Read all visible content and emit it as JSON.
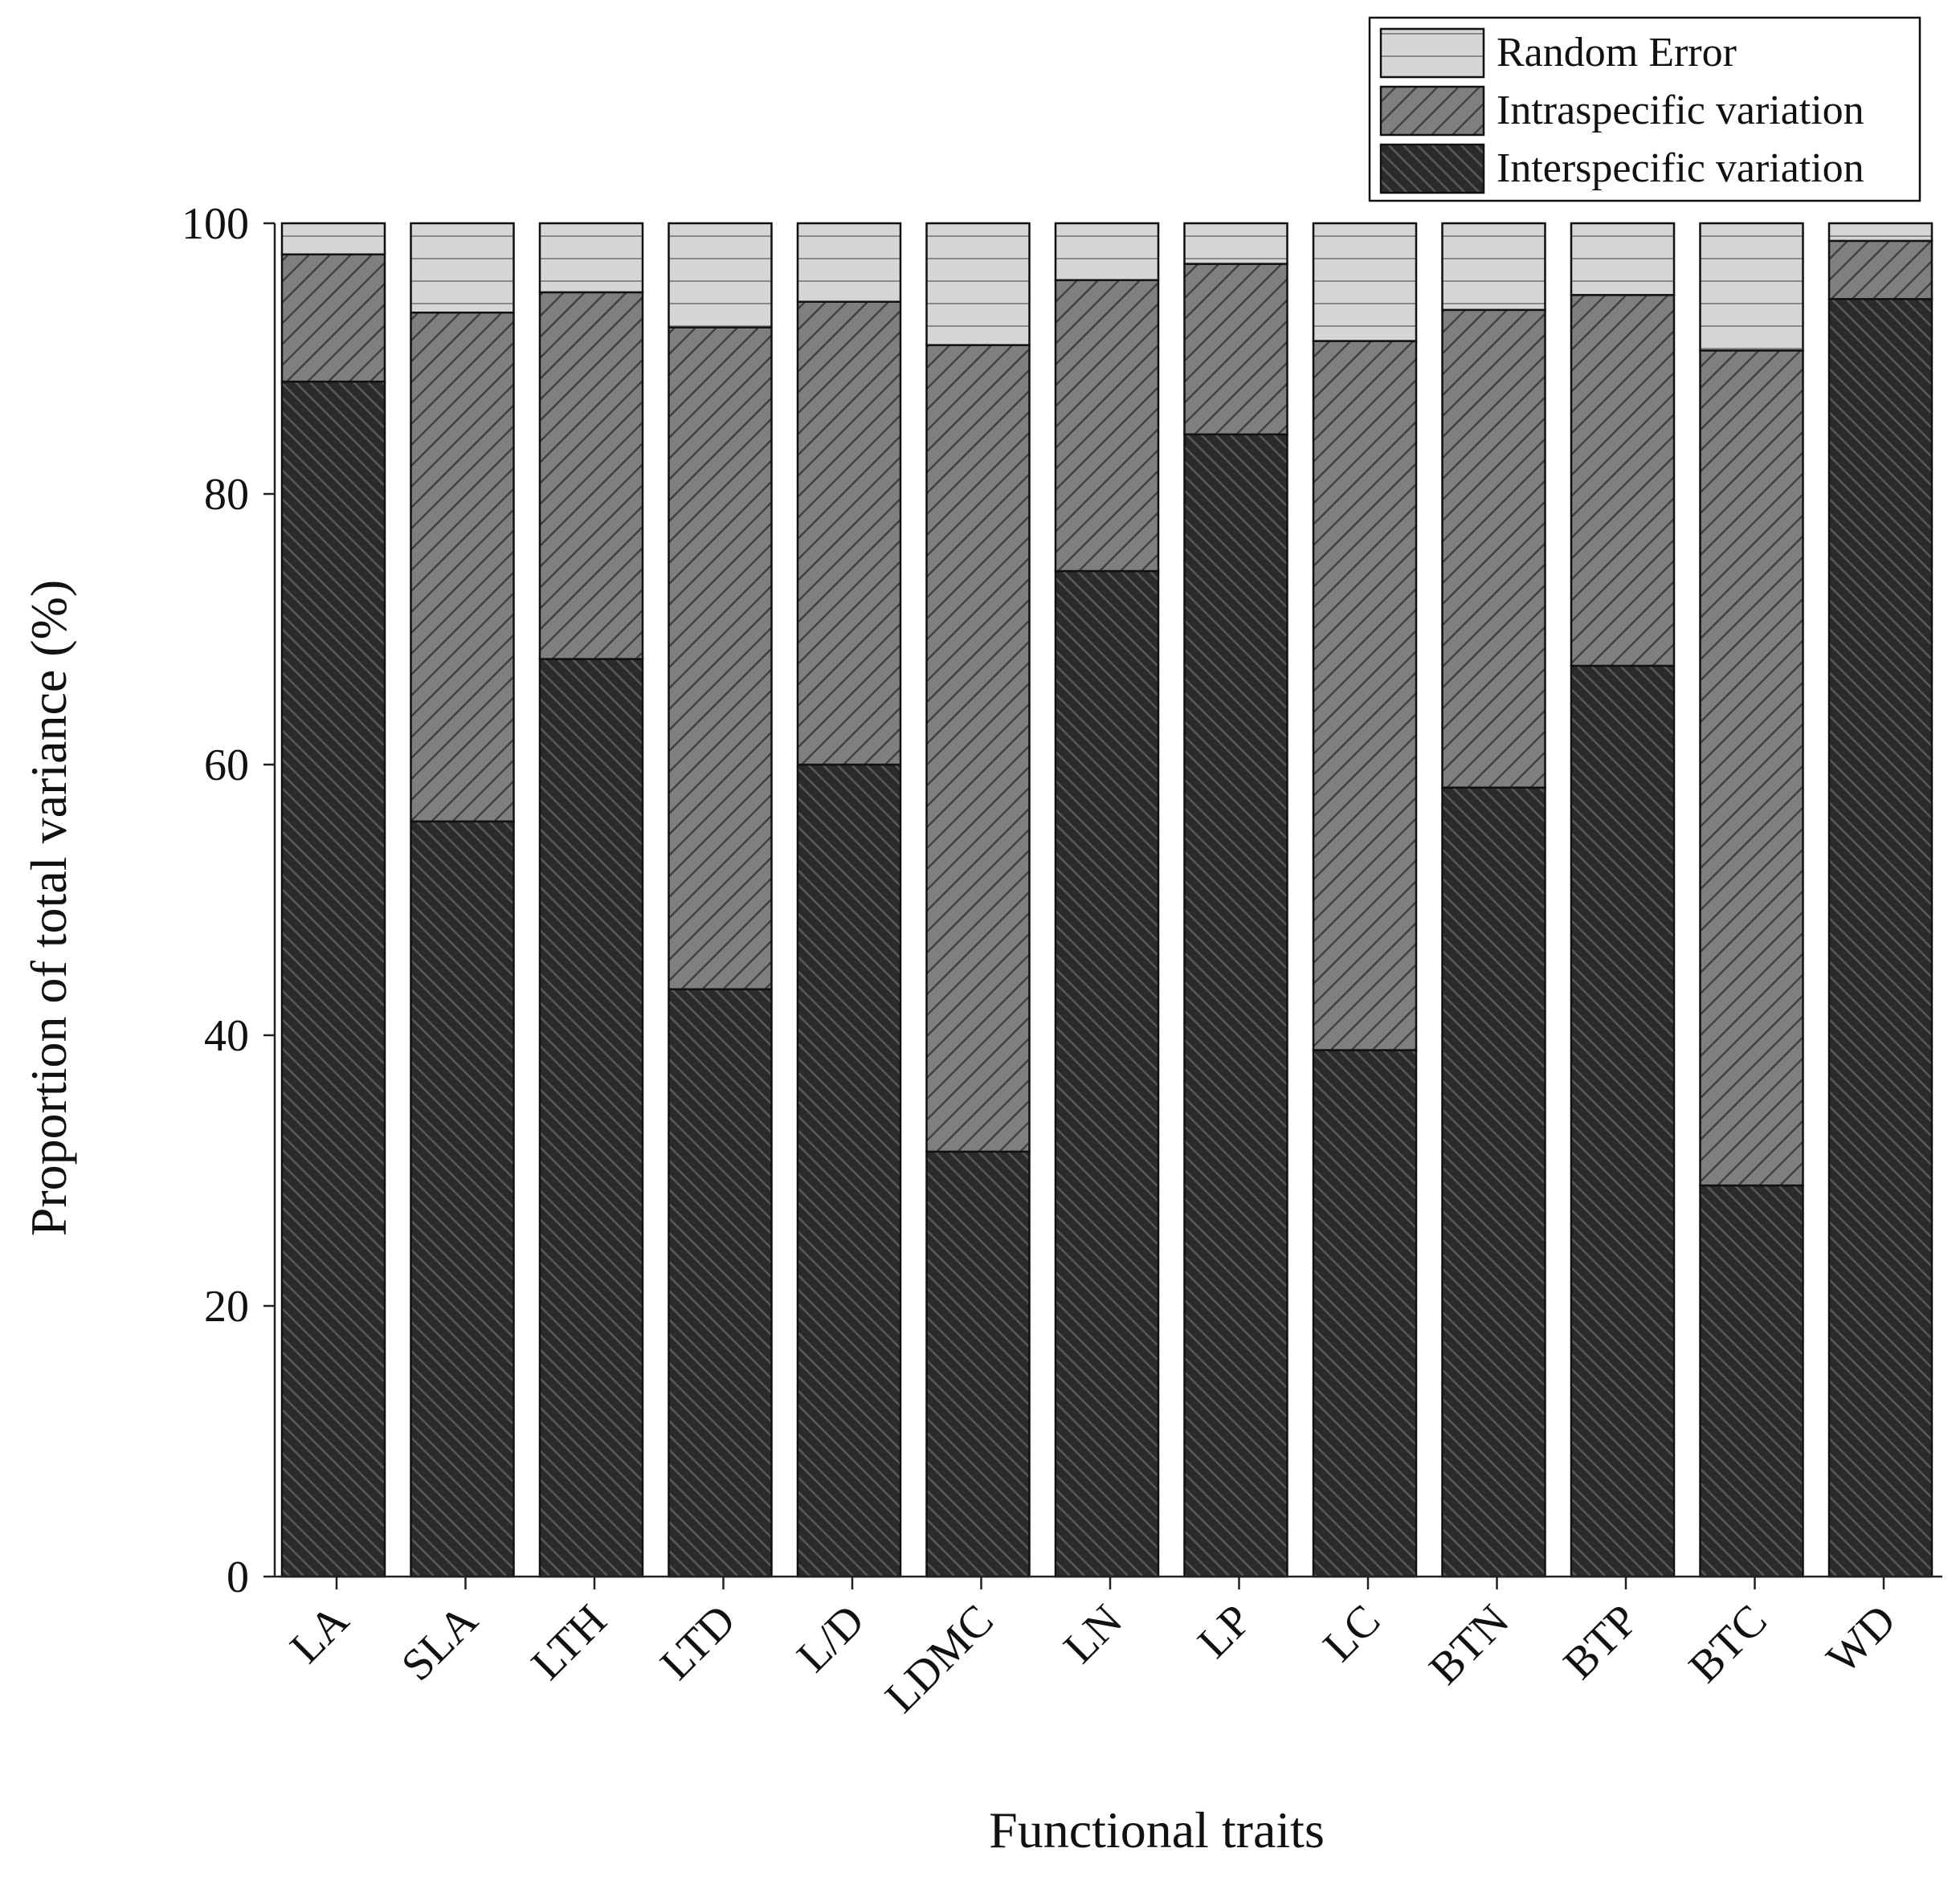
{
  "chart_data": {
    "type": "bar",
    "stacked": true,
    "title": "",
    "xlabel": "Functional traits",
    "ylabel": "Proportion of total variance (%)",
    "ylim": [
      0,
      100
    ],
    "yticks": [
      "0",
      "20",
      "40",
      "60",
      "80",
      "100"
    ],
    "grid": false,
    "legend_position": "top-right",
    "categories": [
      "LA",
      "SLA",
      "LTH",
      "LTD",
      "L/D",
      "LDMC",
      "LN",
      "LP",
      "LC",
      "BTN",
      "BTP",
      "BTC",
      "WD"
    ],
    "series": [
      {
        "name": "Interspecific variation",
        "color": "#2b2b2b",
        "pattern": "back-diagonal",
        "values": [
          88.3,
          55.8,
          67.8,
          43.4,
          60.0,
          31.4,
          74.3,
          84.4,
          38.9,
          58.3,
          67.3,
          28.9,
          94.4
        ]
      },
      {
        "name": "Intraspecific variation",
        "color": "#7f7f7f",
        "pattern": "forward-diagonal",
        "values": [
          9.4,
          37.6,
          27.1,
          48.9,
          34.2,
          59.6,
          21.5,
          12.6,
          52.4,
          35.3,
          27.4,
          61.7,
          4.3
        ]
      },
      {
        "name": "Random Error",
        "color": "#d6d6d6",
        "pattern": "horizontal",
        "values": [
          2.3,
          6.6,
          5.1,
          7.7,
          5.8,
          9.0,
          4.2,
          3.0,
          8.7,
          6.4,
          5.3,
          9.4,
          1.3
        ]
      }
    ]
  }
}
